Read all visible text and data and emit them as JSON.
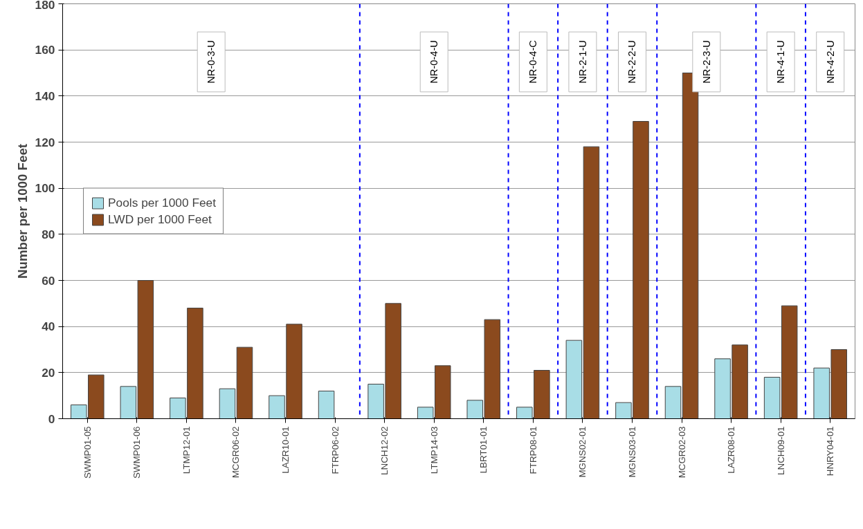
{
  "chart_data": {
    "type": "bar",
    "ylabel": "Number per 1000 Feet",
    "categories": [
      "SWMP01-05",
      "SWMP01-06",
      "LTMP12-01",
      "MCGR06-02",
      "LAZR10-01",
      "FTRP06-02",
      "LNCH12-02",
      "LTMP14-03",
      "LBRT01-01",
      "FTRP08-01",
      "MGNS02-01",
      "MGNS03-01",
      "MCGR02-03",
      "LAZR08-01",
      "LNCH09-01",
      "HNRY04-01"
    ],
    "series": [
      {
        "name": "Pools per 1000 Feet",
        "color": "#a8dde6",
        "values": [
          6,
          14,
          9,
          13,
          10,
          12,
          15,
          5,
          8,
          5,
          34,
          7,
          14,
          26,
          18,
          22
        ]
      },
      {
        "name": "LWD per 1000 Feet",
        "color": "#8b4a1e",
        "values": [
          19,
          60,
          48,
          31,
          41,
          null,
          50,
          23,
          43,
          21,
          118,
          129,
          150,
          32,
          49,
          30
        ]
      }
    ],
    "ylim": [
      0,
      180
    ],
    "yticks": [
      0,
      20,
      40,
      60,
      80,
      100,
      120,
      140,
      160,
      180
    ],
    "grid": "y",
    "legend": "left",
    "annotations": [
      "NR-0-3-U",
      "NR-0-4-U",
      "NR-0-4-C",
      "NR-2-1-U",
      "NR-2-2-U",
      "NR-2-3-U",
      "NR-4-1-U",
      "NR-4-2-U"
    ]
  }
}
